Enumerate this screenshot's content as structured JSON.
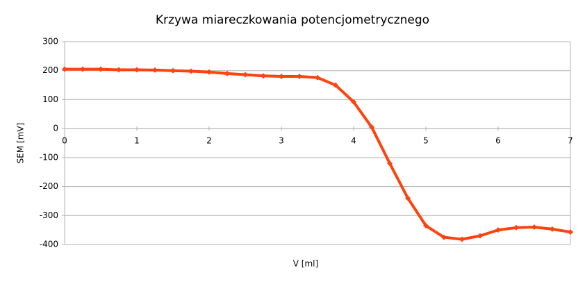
{
  "chart_data": {
    "type": "line",
    "title": "Krzywa miareczkowania potencjometrycznego",
    "x_label": "V [ml]",
    "y_label": "SEM [mV]",
    "x": [
      0,
      0.25,
      0.5,
      0.75,
      1,
      1.25,
      1.5,
      1.75,
      2,
      2.25,
      2.5,
      2.75,
      3,
      3.25,
      3.5,
      3.75,
      4,
      4.25,
      4.5,
      4.75,
      5,
      5.25,
      5.5,
      5.75,
      6,
      6.25,
      6.5,
      6.75,
      7
    ],
    "series": [
      {
        "name": "SEM",
        "color": "#ff420e",
        "values": [
          205,
          205,
          205,
          203,
          203,
          202,
          200,
          198,
          195,
          190,
          186,
          182,
          180,
          180,
          176,
          150,
          92,
          5,
          -120,
          -240,
          -335,
          -375,
          -382,
          -370,
          -350,
          -342,
          -340,
          -347,
          -357
        ]
      }
    ],
    "xlim": [
      0,
      7
    ],
    "xticks": [
      0,
      1,
      2,
      3,
      4,
      5,
      6,
      7
    ],
    "ylim": [
      -400,
      300
    ],
    "yticks": [
      -400,
      -300,
      -200,
      -100,
      0,
      100,
      200,
      300
    ],
    "grid": true
  }
}
